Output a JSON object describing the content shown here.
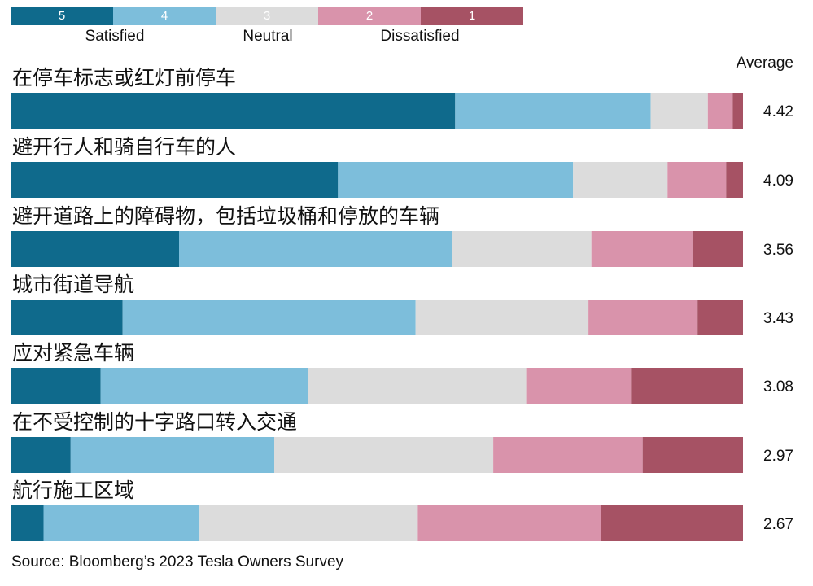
{
  "chart_data": {
    "type": "bar",
    "stacked": true,
    "orientation": "horizontal",
    "normalized_percent": true,
    "legend": {
      "placement": "top-left",
      "scale": [
        {
          "label": "5",
          "color": "#0f6a8c"
        },
        {
          "label": "4",
          "color": "#7dbedb"
        },
        {
          "label": "3",
          "color": "#dcdcdc"
        },
        {
          "label": "2",
          "color": "#d993ab"
        },
        {
          "label": "1",
          "color": "#a65264"
        }
      ],
      "captions": [
        "Satisfied",
        "Neutral",
        "Dissatisfied"
      ]
    },
    "average_header": "Average",
    "categories": [
      "在停车标志或红灯前停车",
      "避开行人和骑自行车的人",
      "避开道路上的障碍物，包括垃圾桶和停放的车辆",
      "城市街道导航",
      "应对紧急车辆",
      "在不受控制的十字路口转入交通",
      "航行施工区域"
    ],
    "series": [
      {
        "name": "5",
        "values": [
          60.7,
          44.7,
          23.0,
          15.3,
          12.3,
          8.2,
          4.5
        ]
      },
      {
        "name": "4",
        "values": [
          26.7,
          32.1,
          37.3,
          40.0,
          28.3,
          27.8,
          21.3
        ]
      },
      {
        "name": "3",
        "values": [
          7.8,
          12.9,
          19.0,
          23.6,
          29.8,
          29.9,
          29.8
        ]
      },
      {
        "name": "2",
        "values": [
          3.4,
          8.0,
          13.8,
          14.9,
          14.3,
          20.4,
          25.0
        ]
      },
      {
        "name": "1",
        "values": [
          1.4,
          2.3,
          6.9,
          6.2,
          15.3,
          13.7,
          19.4
        ]
      }
    ],
    "averages": [
      "4.42",
      "4.09",
      "3.56",
      "3.43",
      "3.08",
      "2.97",
      "2.67"
    ],
    "xlim": [
      0,
      100
    ],
    "grid": false,
    "source": "Source: Bloomberg’s 2023 Tesla Owners Survey"
  }
}
